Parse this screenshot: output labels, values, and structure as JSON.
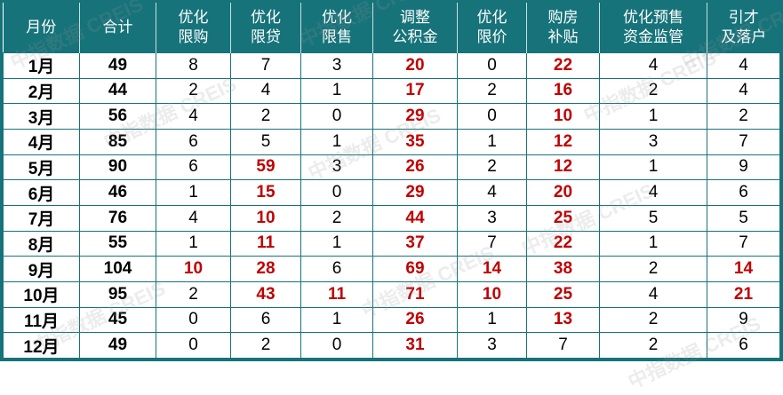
{
  "watermark": "中指数据 CREIS",
  "colors": {
    "header_bg": "#16737a",
    "highlight": "#c00000"
  },
  "headers": [
    "月份",
    "合计",
    "优化\n限购",
    "优化\n限贷",
    "优化\n限售",
    "调整\n公积金",
    "优化\n限价",
    "购房\n补贴",
    "优化预售\n资金监管",
    "引才\n及落户"
  ],
  "rows": [
    [
      "1月",
      "49",
      "8",
      "7",
      "3",
      "20",
      "0",
      "22",
      "4",
      "4"
    ],
    [
      "2月",
      "44",
      "2",
      "4",
      "1",
      "17",
      "2",
      "16",
      "2",
      "4"
    ],
    [
      "3月",
      "56",
      "4",
      "2",
      "0",
      "29",
      "0",
      "10",
      "1",
      "2"
    ],
    [
      "4月",
      "85",
      "6",
      "5",
      "1",
      "35",
      "1",
      "12",
      "3",
      "7"
    ],
    [
      "5月",
      "90",
      "6",
      "59",
      "3",
      "26",
      "2",
      "12",
      "1",
      "9"
    ],
    [
      "6月",
      "46",
      "1",
      "15",
      "0",
      "29",
      "4",
      "20",
      "4",
      "6"
    ],
    [
      "7月",
      "76",
      "4",
      "10",
      "2",
      "44",
      "3",
      "25",
      "5",
      "5"
    ],
    [
      "8月",
      "55",
      "1",
      "11",
      "1",
      "37",
      "7",
      "22",
      "1",
      "7"
    ],
    [
      "9月",
      "104",
      "10",
      "28",
      "6",
      "69",
      "14",
      "38",
      "2",
      "14"
    ],
    [
      "10月",
      "95",
      "2",
      "43",
      "11",
      "71",
      "10",
      "25",
      "4",
      "21"
    ],
    [
      "11月",
      "45",
      "0",
      "6",
      "1",
      "26",
      "1",
      "13",
      "2",
      "9"
    ],
    [
      "12月",
      "49",
      "0",
      "2",
      "0",
      "31",
      "3",
      "7",
      "2",
      "6"
    ]
  ]
}
